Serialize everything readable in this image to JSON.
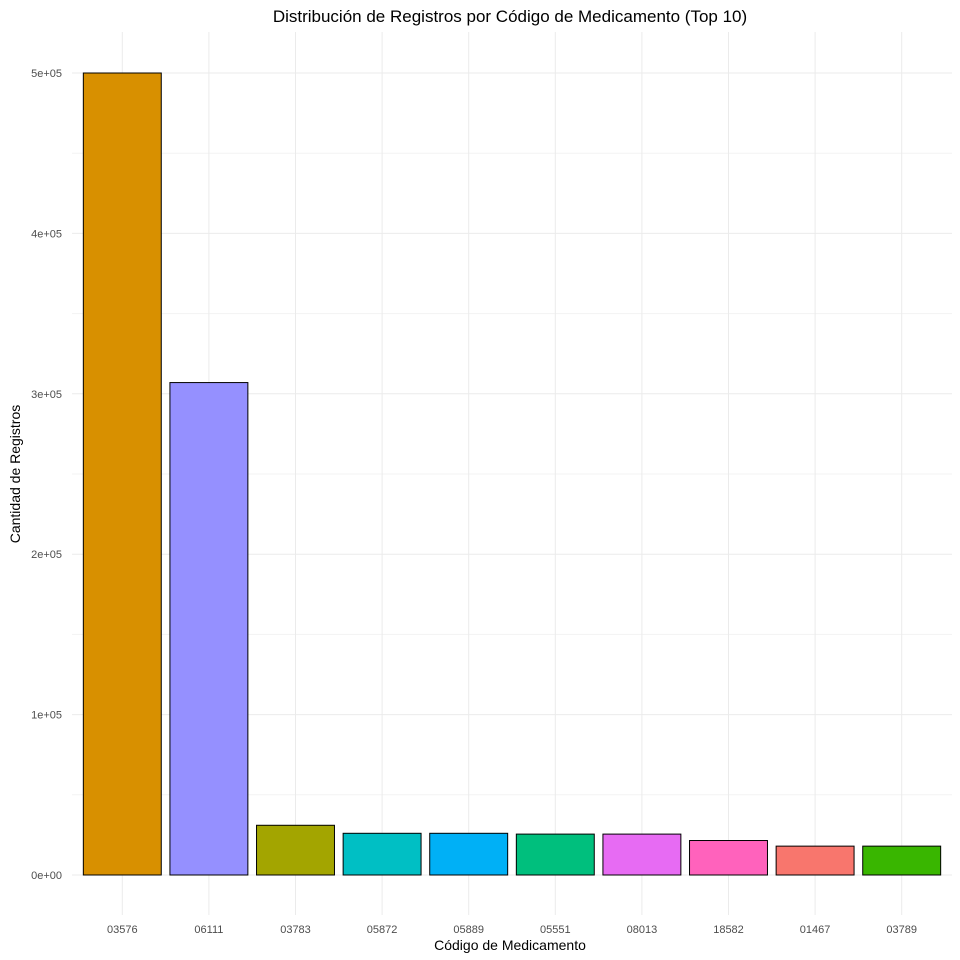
{
  "chart_data": {
    "type": "bar",
    "title": "Distribución de Registros por Código de Medicamento (Top 10)",
    "xlabel": "Código de Medicamento",
    "ylabel": "Cantidad de Registros",
    "categories": [
      "03576",
      "06111",
      "03783",
      "05872",
      "05889",
      "05551",
      "08013",
      "18582",
      "01467",
      "03789"
    ],
    "values": [
      500000,
      307000,
      31000,
      26000,
      26000,
      25500,
      25500,
      21500,
      18000,
      18000
    ],
    "colors": [
      "#D89000",
      "#9590FF",
      "#A3A500",
      "#00BFC4",
      "#00B0F6",
      "#00BF7D",
      "#E76BF3",
      "#FF62BC",
      "#F8766D",
      "#39B600"
    ],
    "ylim": [
      0,
      500000
    ],
    "yticks": [
      0,
      100000,
      200000,
      300000,
      400000,
      500000
    ],
    "ytick_labels": [
      "0e+00",
      "1e+05",
      "2e+05",
      "3e+05",
      "4e+05",
      "5e+05"
    ],
    "grid": true,
    "legend": "none"
  }
}
